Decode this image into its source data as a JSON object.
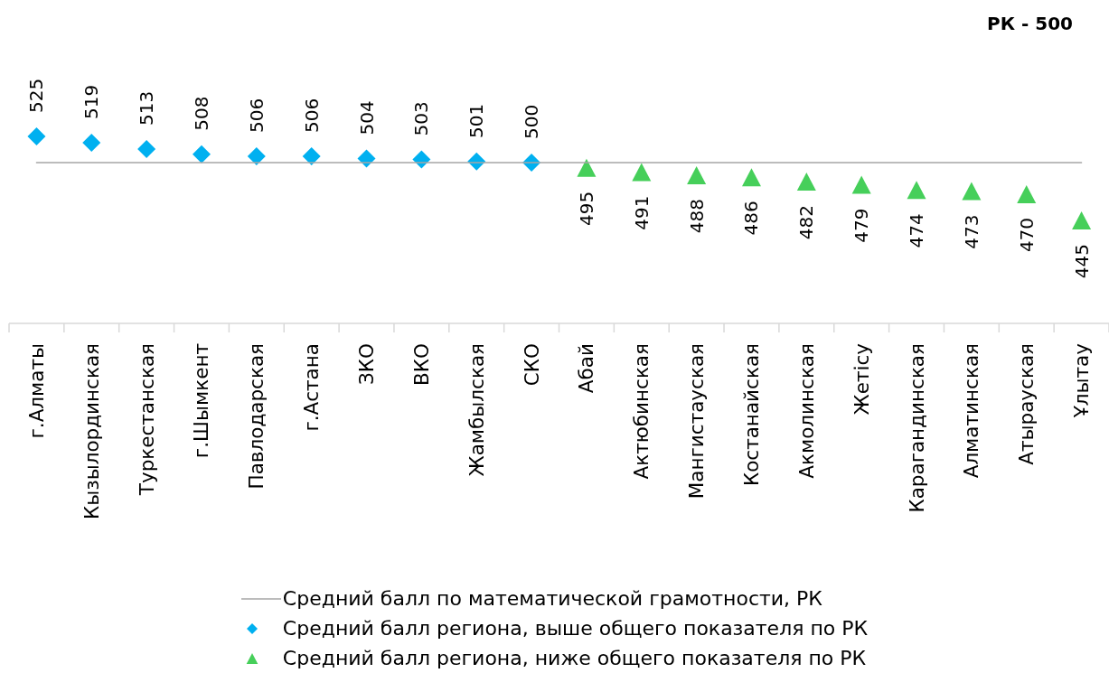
{
  "chart_data": {
    "type": "scatter",
    "title": "РК - 500",
    "categories": [
      "г.Алматы",
      "Кызылординская",
      "Туркестанская",
      "г.Шымкент",
      "Павлодарская",
      "г.Астана",
      "ЗКО",
      "ВКО",
      "Жамбылская",
      "СКО",
      "Абай",
      "Актюбинская",
      "Мангистауская",
      "Костанайская",
      "Акмолинская",
      "Жетісу",
      "Карагандинская",
      "Алматинская",
      "Атырауская",
      "Ұлытау"
    ],
    "series": [
      {
        "name": "Средний балл по математической грамотности, РК",
        "type": "line",
        "color": "#a6a6a6",
        "marker": "none",
        "values": [
          500,
          500,
          500,
          500,
          500,
          500,
          500,
          500,
          500,
          500,
          500,
          500,
          500,
          500,
          500,
          500,
          500,
          500,
          500,
          500
        ]
      },
      {
        "name": "Средний балл региона, выше общего показателя по РК",
        "color": "#00b0f0",
        "marker": "diamond",
        "values": [
          525,
          519,
          513,
          508,
          506,
          506,
          504,
          503,
          501,
          500,
          null,
          null,
          null,
          null,
          null,
          null,
          null,
          null,
          null,
          null
        ],
        "value_labels": [
          "525",
          "519",
          "513",
          "508",
          "506",
          "506",
          "504",
          "503",
          "501",
          "500",
          null,
          null,
          null,
          null,
          null,
          null,
          null,
          null,
          null,
          null
        ]
      },
      {
        "name": "Средний балл региона, ниже общего показателя по РК",
        "color": "#46cf5a",
        "marker": "triangle",
        "values": [
          null,
          null,
          null,
          null,
          null,
          null,
          null,
          null,
          null,
          null,
          495,
          491,
          488,
          486,
          482,
          479,
          474,
          473,
          470,
          445
        ],
        "value_labels": [
          null,
          null,
          null,
          null,
          null,
          null,
          null,
          null,
          null,
          null,
          "495",
          "491",
          "488",
          "486",
          "482",
          "479",
          "474",
          "473",
          "470",
          "445"
        ]
      }
    ],
    "legend": "bottom"
  }
}
